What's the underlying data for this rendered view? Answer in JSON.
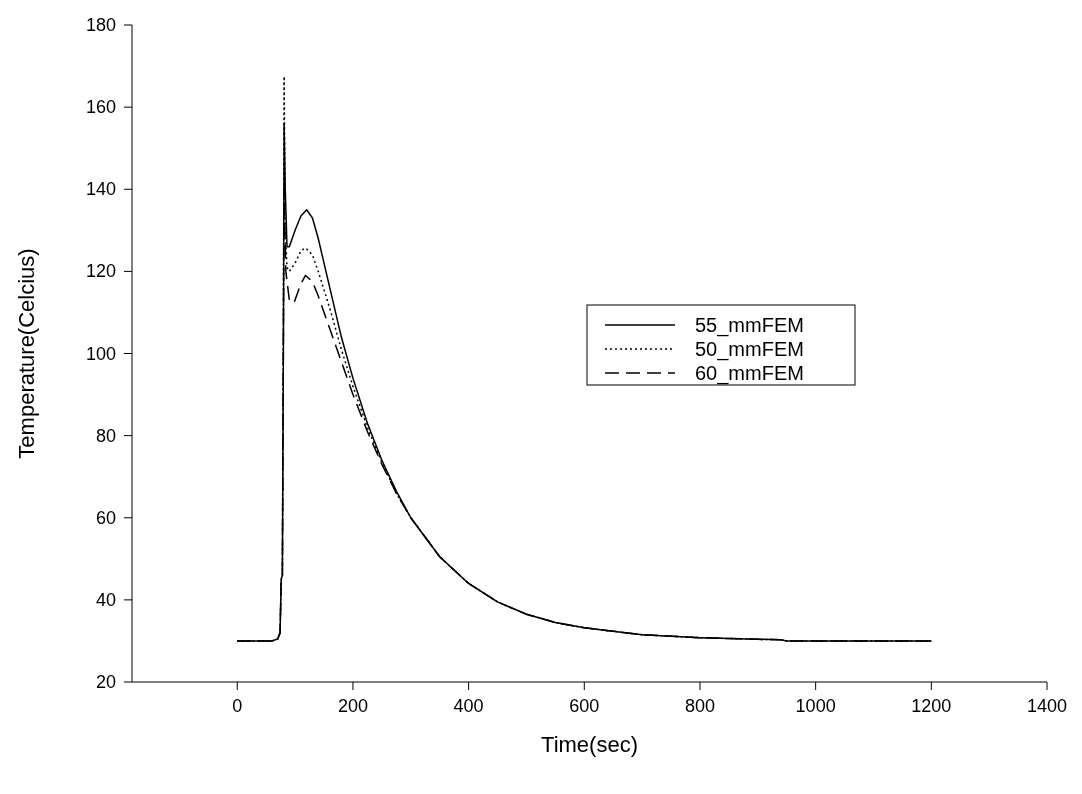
{
  "chart_data": {
    "type": "line",
    "xlabel": "Time(sec)",
    "ylabel": "Temperature(Celcius)",
    "xlim": [
      -182,
      1400
    ],
    "xticks": [
      0,
      200,
      400,
      600,
      800,
      1000,
      1200,
      1400
    ],
    "ylim": [
      20,
      180
    ],
    "yticks": [
      20,
      40,
      60,
      80,
      100,
      120,
      140,
      160,
      180
    ],
    "grid": false,
    "legend": "right",
    "series": [
      {
        "name": "55_mmFEM",
        "color": "#000000",
        "line_style": "solid",
        "x": [
          0,
          60,
          70,
          74,
          76,
          78,
          80,
          81,
          83,
          86,
          90,
          100,
          110,
          120,
          130,
          140,
          160,
          180,
          200,
          225,
          250,
          275,
          300,
          350,
          400,
          450,
          500,
          550,
          600,
          700,
          800,
          900,
          940,
          950,
          1000,
          1200
        ],
        "values": [
          30,
          30,
          30.5,
          32,
          45,
          46,
          110,
          156,
          140,
          126,
          126,
          130,
          133.5,
          135,
          133,
          128,
          116,
          104,
          94,
          83,
          74,
          66.5,
          60,
          50.5,
          44,
          39.5,
          36.5,
          34.5,
          33.2,
          31.5,
          30.8,
          30.4,
          30.3,
          30,
          30,
          30
        ]
      },
      {
        "name": "50_mmFEM",
        "color": "#000000",
        "line_style": "dotted",
        "x": [
          0,
          60,
          70,
          74,
          76,
          78,
          80,
          81,
          83,
          86,
          90,
          100,
          110,
          118,
          130,
          140,
          160,
          180,
          200,
          225,
          250,
          275,
          300,
          350,
          400,
          450,
          500,
          550,
          600,
          700,
          800,
          900,
          940,
          950,
          1000,
          1200
        ],
        "values": [
          30,
          30,
          30.5,
          32,
          45,
          46,
          120,
          167.5,
          130,
          121,
          120,
          122,
          125,
          125.7,
          124,
          120,
          111,
          101,
          92,
          82,
          73.5,
          66,
          60,
          50.5,
          44,
          39.5,
          36.5,
          34.5,
          33.2,
          31.5,
          30.8,
          30.4,
          30.3,
          30,
          30,
          30
        ]
      },
      {
        "name": "60_mmFEM",
        "color": "#000000",
        "line_style": "dashed",
        "x": [
          0,
          60,
          70,
          74,
          76,
          78,
          80,
          81,
          84,
          90,
          98,
          110,
          118,
          130,
          140,
          160,
          180,
          200,
          225,
          250,
          275,
          300,
          350,
          400,
          450,
          500,
          550,
          600,
          700,
          800,
          900,
          940,
          950,
          1000,
          1200
        ],
        "values": [
          30,
          30,
          30.5,
          32,
          45,
          46,
          112,
          140,
          120,
          113,
          112.3,
          117,
          119,
          117.5,
          114,
          106,
          98,
          90,
          81,
          73,
          66,
          60,
          50.5,
          44,
          39.5,
          36.5,
          34.5,
          33.2,
          31.5,
          30.8,
          30.4,
          30.3,
          30,
          30,
          30
        ]
      }
    ]
  }
}
